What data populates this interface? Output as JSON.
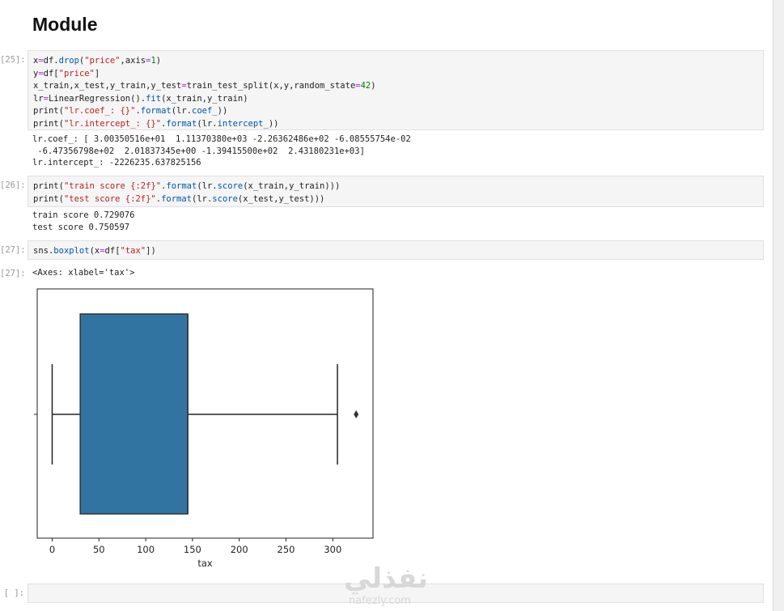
{
  "heading": "Module",
  "cells": [
    {
      "prompt": "[25]:",
      "lines": [
        [
          [
            "x",
            "t"
          ],
          [
            "=",
            "o"
          ],
          [
            "df.",
            "t"
          ],
          [
            "drop",
            "f"
          ],
          [
            "(",
            "t"
          ],
          [
            "\"price\"",
            "s"
          ],
          [
            ",axis",
            "t"
          ],
          [
            "=",
            "o"
          ],
          [
            "1",
            "n"
          ],
          [
            ")",
            "t"
          ]
        ],
        [
          [
            "y",
            "t"
          ],
          [
            "=",
            "o"
          ],
          [
            "df[",
            "t"
          ],
          [
            "\"price\"",
            "s"
          ],
          [
            "]",
            "t"
          ]
        ],
        [
          [
            "x_train,x_test,y_train,y_test",
            "t"
          ],
          [
            "=",
            "o"
          ],
          [
            "train_test_split(x,y,random_state",
            "t"
          ],
          [
            "=",
            "o"
          ],
          [
            "42",
            "n"
          ],
          [
            ")",
            "t"
          ]
        ],
        [
          [
            "lr",
            "t"
          ],
          [
            "=",
            "o"
          ],
          [
            "LinearRegression().",
            "t"
          ],
          [
            "fit",
            "f"
          ],
          [
            "(x_train,y_train)",
            "t"
          ]
        ],
        [
          [
            "print(",
            "t"
          ],
          [
            "\"lr.coef_: {}\"",
            "s"
          ],
          [
            ".",
            "t"
          ],
          [
            "format",
            "f"
          ],
          [
            "(lr.",
            "t"
          ],
          [
            "coef_",
            "f"
          ],
          [
            "))",
            "t"
          ]
        ],
        [
          [
            "print(",
            "t"
          ],
          [
            "\"lr.intercept_: {}\"",
            "s"
          ],
          [
            ".",
            "t"
          ],
          [
            "format",
            "f"
          ],
          [
            "(lr.",
            "t"
          ],
          [
            "intercept_",
            "f"
          ],
          [
            "))",
            "t"
          ]
        ]
      ],
      "output": [
        "lr.coef_: [ 3.00350516e+01  1.11370380e+03 -2.26362486e+02 -6.08555754e-02",
        " -6.47356798e+02  2.01837345e+00 -1.39415500e+02  2.43180231e+03]",
        "lr.intercept_: -2226235.637825156"
      ]
    },
    {
      "prompt": "[26]:",
      "lines": [
        [
          [
            "print(",
            "t"
          ],
          [
            "\"train score {:2f}\"",
            "s"
          ],
          [
            ".",
            "t"
          ],
          [
            "format",
            "f"
          ],
          [
            "(lr.",
            "t"
          ],
          [
            "score",
            "f"
          ],
          [
            "(x_train,y_train)))",
            "t"
          ]
        ],
        [
          [
            "print(",
            "t"
          ],
          [
            "\"test score {:2f}\"",
            "s"
          ],
          [
            ".",
            "t"
          ],
          [
            "format",
            "f"
          ],
          [
            "(lr.",
            "t"
          ],
          [
            "score",
            "f"
          ],
          [
            "(x_test,y_test)))",
            "t"
          ]
        ]
      ],
      "output": [
        "train score 0.729076",
        "test score 0.750597"
      ]
    },
    {
      "prompt": "[27]:",
      "lines": [
        [
          [
            "sns.",
            "t"
          ],
          [
            "boxplot",
            "f"
          ],
          [
            "(x",
            "t"
          ],
          [
            "=",
            "o"
          ],
          [
            "df[",
            "t"
          ],
          [
            "\"tax\"",
            "s"
          ],
          [
            "])",
            "t"
          ]
        ]
      ],
      "output_prompt": "[27]:",
      "output": [
        "<Axes: xlabel='tax'>"
      ]
    },
    {
      "prompt": "[ ]:",
      "lines": []
    }
  ],
  "chart_data": {
    "type": "boxplot",
    "xlabel": "tax",
    "ylabel": "",
    "xlim": [
      -16,
      343
    ],
    "xticks": [
      0,
      50,
      100,
      150,
      200,
      250,
      300
    ],
    "whisker_low": 0,
    "q1": 30,
    "median": 145,
    "q3": 145,
    "whisker_high": 305,
    "outliers": [
      325
    ],
    "box_color": "#3274a1"
  },
  "watermark": {
    "arabic": "نفذلي",
    "latin": "nafezly.com"
  }
}
